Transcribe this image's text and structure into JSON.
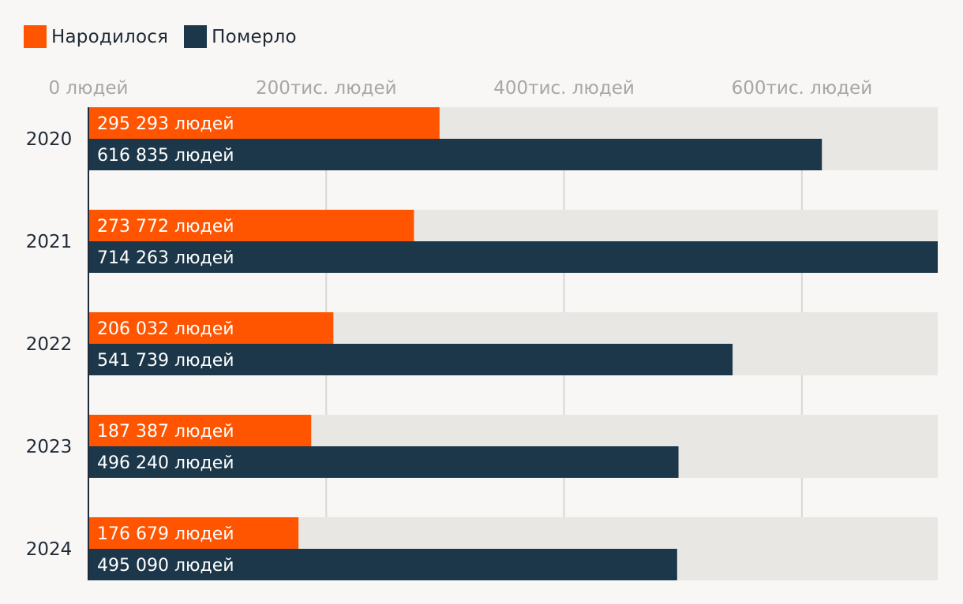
{
  "chart_data": {
    "type": "bar",
    "orientation": "horizontal",
    "categories": [
      "2020",
      "2021",
      "2022",
      "2023",
      "2024"
    ],
    "series": [
      {
        "name": "Народилося",
        "color": "#ff5500",
        "values": [
          295293,
          273772,
          206032,
          187387,
          176679
        ],
        "labels": [
          "295 293 людей",
          "273 772 людей",
          "206 032 людей",
          "187 387 людей",
          "176 679 людей"
        ]
      },
      {
        "name": "Померло",
        "color": "#1b3749",
        "values": [
          616835,
          714263,
          541739,
          496240,
          495090
        ],
        "labels": [
          "616 835 людей",
          "714 263 людей",
          "541 739 людей",
          "496 240 людей",
          "495 090 людей"
        ]
      }
    ],
    "xlim": [
      0,
      714263
    ],
    "ticks": [
      0,
      200000,
      400000,
      600000
    ],
    "tick_labels": [
      "0 людей",
      "200тис. людей",
      "400тис. людей",
      "600тис. людей"
    ],
    "grid": true,
    "legend": "top-left",
    "track_color": "#e9e7e4",
    "grid_color": "#d9d7d4"
  }
}
